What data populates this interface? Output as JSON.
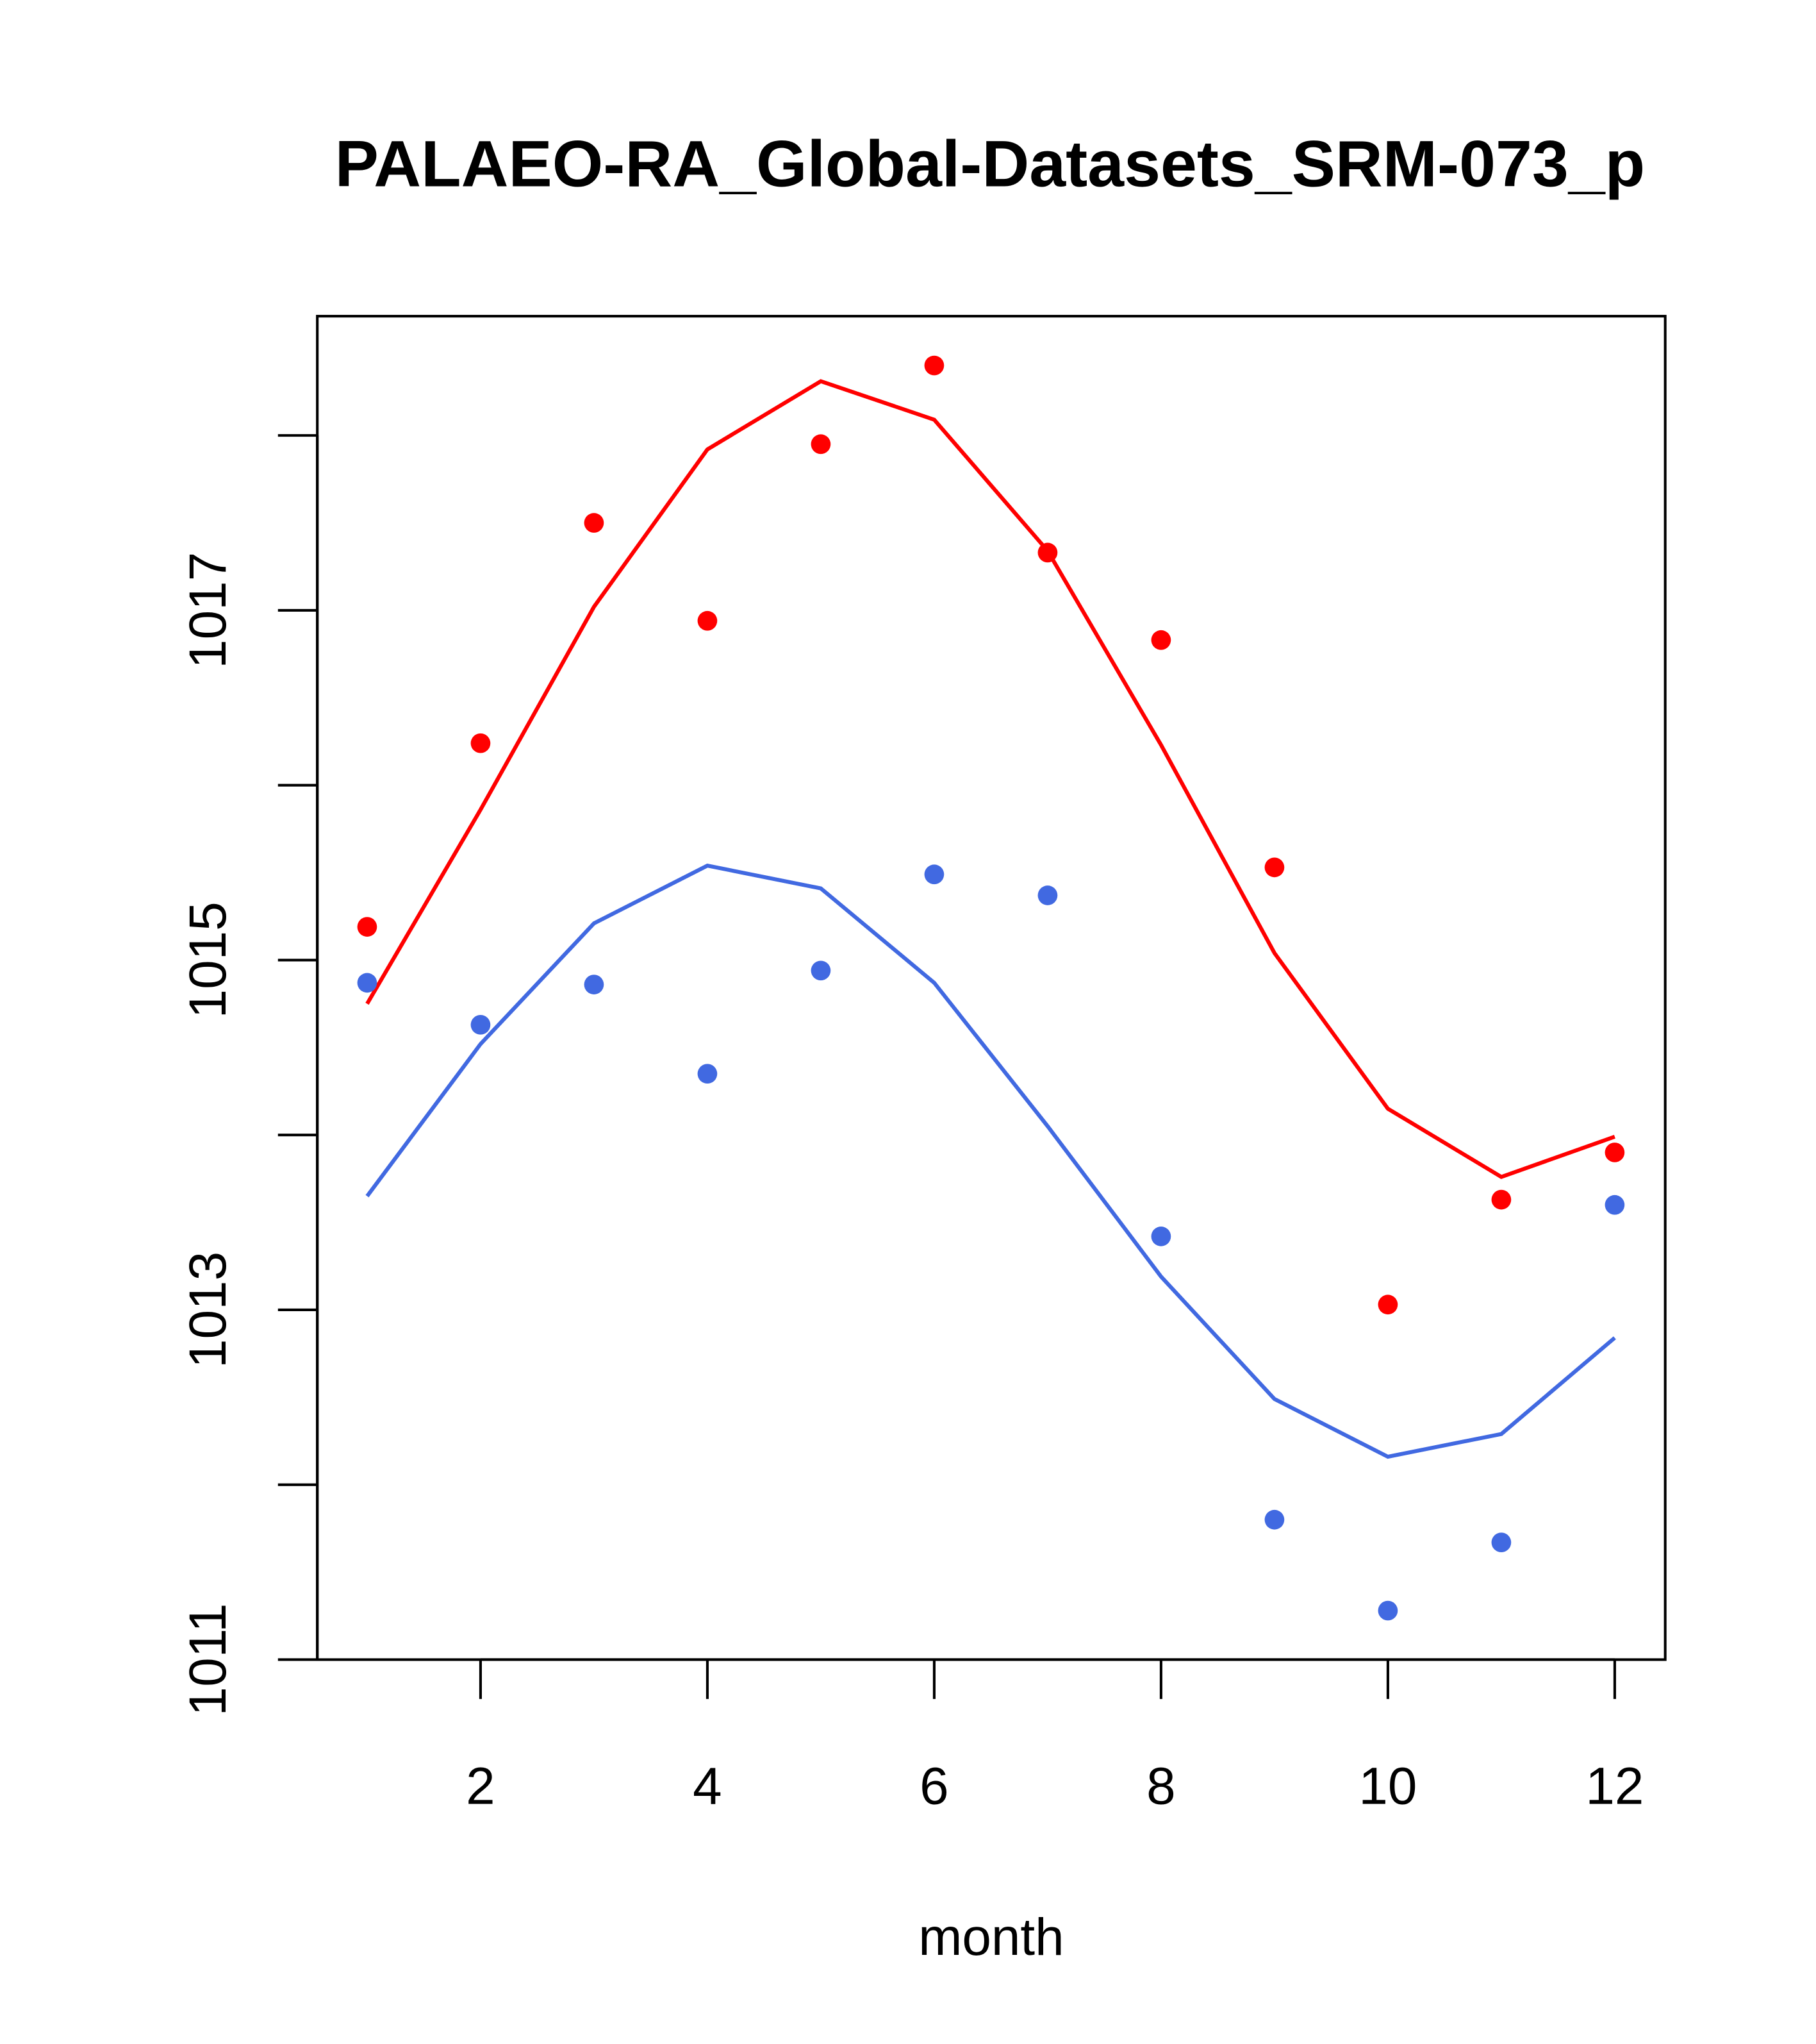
{
  "chart_data": {
    "type": "line",
    "title": "PALAEO-RA_Global-Datasets_SRM-073_p",
    "xlabel": "month",
    "ylabel": "",
    "xlim": [
      0.56,
      12.44
    ],
    "ylim": [
      1011,
      1018.68
    ],
    "x_ticks": [
      2,
      4,
      6,
      8,
      10,
      12
    ],
    "y_ticks": [
      1011,
      1012,
      1013,
      1014,
      1015,
      1016,
      1017,
      1018
    ],
    "y_tick_labels": [
      "1011",
      "1013",
      "1015",
      "1017"
    ],
    "x": [
      1,
      2,
      3,
      4,
      5,
      6,
      7,
      8,
      9,
      10,
      11,
      12
    ],
    "grid": false,
    "series": [
      {
        "name": "red points",
        "kind": "points",
        "color": "#FF0000",
        "values": [
          1015.19,
          1016.24,
          1017.5,
          1016.94,
          1017.95,
          1018.4,
          1017.33,
          1016.83,
          1015.53,
          1013.03,
          1013.63,
          1013.9
        ]
      },
      {
        "name": "red line",
        "kind": "line",
        "color": "#FF0000",
        "values": [
          1014.75,
          1015.86,
          1017.02,
          1017.92,
          1018.31,
          1018.09,
          1017.34,
          1016.23,
          1015.04,
          1014.15,
          1013.76,
          1013.99
        ]
      },
      {
        "name": "blue points",
        "kind": "points",
        "color": "#4169E1",
        "values": [
          1014.87,
          1014.63,
          1014.86,
          1014.35,
          1014.94,
          1015.49,
          1015.37,
          1013.42,
          1011.8,
          1011.28,
          1011.67,
          1013.6
        ]
      },
      {
        "name": "blue line",
        "kind": "line",
        "color": "#4169E1",
        "values": [
          1013.65,
          1014.52,
          1015.21,
          1015.54,
          1015.41,
          1014.87,
          1014.05,
          1013.19,
          1012.49,
          1012.16,
          1012.29,
          1012.84
        ]
      }
    ]
  }
}
